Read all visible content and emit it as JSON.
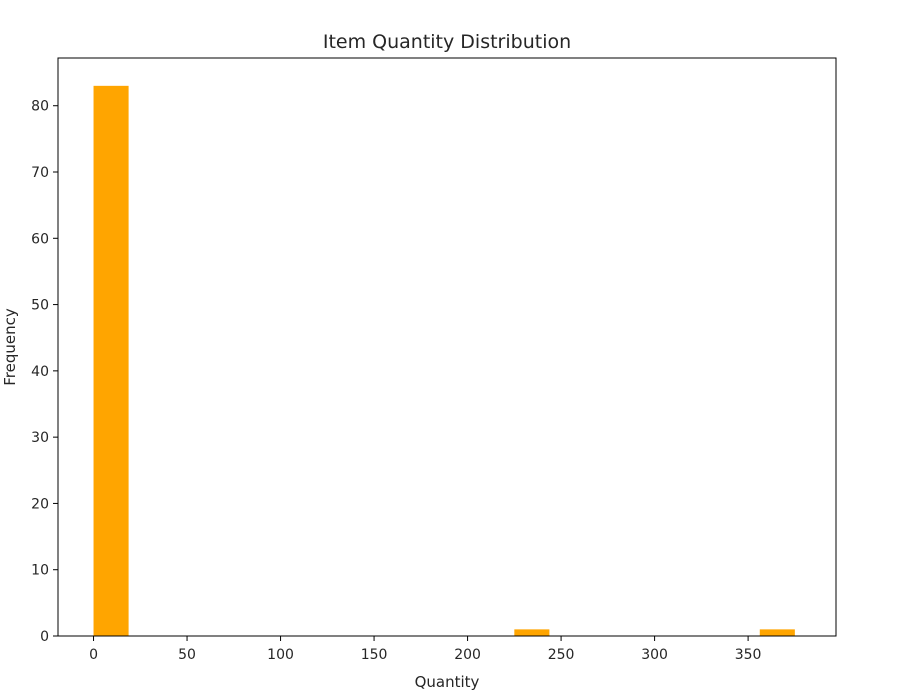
{
  "chart_data": {
    "type": "bar",
    "title": "Item Quantity Distribution",
    "xlabel": "Quantity",
    "ylabel": "Frequency",
    "xlim": [
      -19,
      397
    ],
    "ylim": [
      0,
      87.2
    ],
    "xticks": [
      0,
      50,
      100,
      150,
      200,
      250,
      300,
      350
    ],
    "yticks": [
      0,
      10,
      20,
      30,
      40,
      50,
      60,
      70,
      80
    ],
    "bins": [
      {
        "start": 0,
        "end": 18.75,
        "count": 83
      },
      {
        "start": 225,
        "end": 243.75,
        "count": 1
      },
      {
        "start": 356.25,
        "end": 375,
        "count": 1
      }
    ],
    "bar_color": "#ffa500",
    "grid": false,
    "legend": "none"
  }
}
